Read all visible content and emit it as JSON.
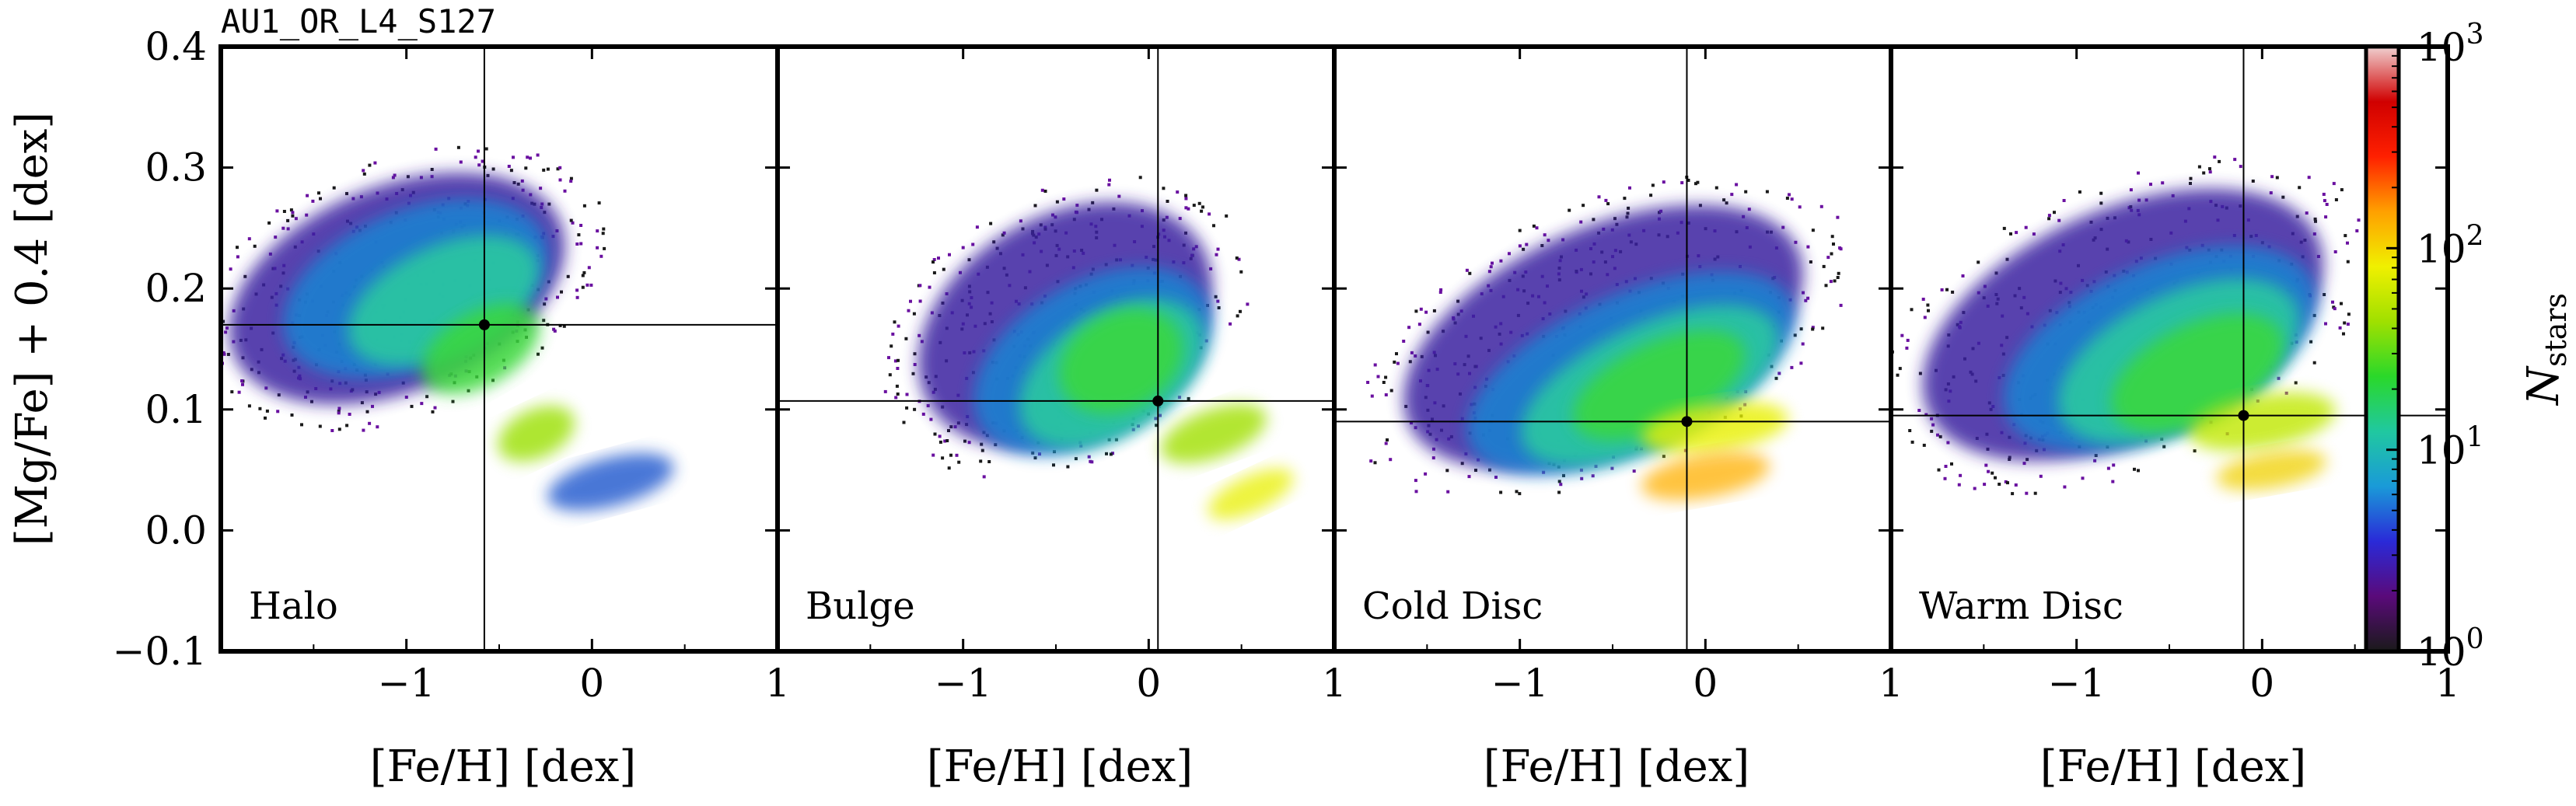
{
  "figure_title": "AU1_OR_L4_S127",
  "chart_data": {
    "type": "heatmap",
    "xlabel": "[Fe/H] [dex]",
    "ylabel": "[Mg/Fe] + 0.4 [dex]",
    "xlim": [
      -2.0,
      1.0
    ],
    "ylim": [
      -0.1,
      0.4
    ],
    "x_ticks": [
      -1,
      0,
      1
    ],
    "y_ticks": [
      -0.1,
      0.0,
      0.1,
      0.2,
      0.3,
      0.4
    ],
    "x_tick_labels": [
      "−1",
      "0",
      "1"
    ],
    "y_tick_labels": [
      "−0.1",
      "0.0",
      "0.1",
      "0.2",
      "0.3",
      "0.4"
    ],
    "grid": false,
    "colorbar": {
      "label_main": "N",
      "label_sub": "stars",
      "scale": "log",
      "range": [
        1,
        1000
      ],
      "ticks": [
        1,
        10,
        100,
        1000
      ],
      "tick_labels": [
        {
          "base": "10",
          "exp": "0"
        },
        {
          "base": "10",
          "exp": "1"
        },
        {
          "base": "10",
          "exp": "2"
        },
        {
          "base": "10",
          "exp": "3"
        }
      ],
      "colormap": [
        "#1a1a1a",
        "#5a0a7a",
        "#2a2ad8",
        "#1a9ad8",
        "#20c8a0",
        "#2ad82a",
        "#a0e000",
        "#f0f000",
        "#ffa000",
        "#ff2000",
        "#d00000",
        "#f0d0d0"
      ]
    },
    "panels": [
      {
        "name": "Halo",
        "median": {
          "x": -0.58,
          "y": 0.17
        }
      },
      {
        "name": "Bulge",
        "median": {
          "x": 0.05,
          "y": 0.107
        }
      },
      {
        "name": "Cold Disc",
        "median": {
          "x": -0.1,
          "y": 0.09
        }
      },
      {
        "name": "Warm Disc",
        "median": {
          "x": -0.1,
          "y": 0.095
        }
      }
    ]
  }
}
